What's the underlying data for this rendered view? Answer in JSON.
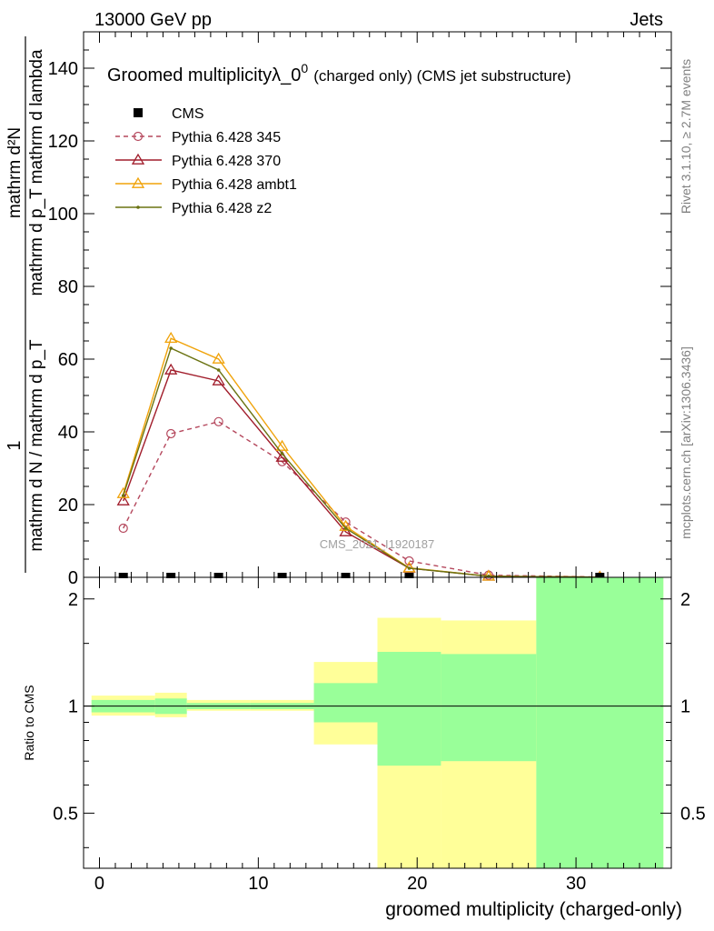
{
  "header": {
    "left": "13000 GeV pp",
    "right": "Jets"
  },
  "side_labels": {
    "rivet": "Rivet 3.1.10, ≥ 2.7M events",
    "mcplots": "mcplots.cern.ch [arXiv:1306.3436]"
  },
  "watermark": "CMS_2021_I1920187",
  "chart_data": [
    {
      "type": "line",
      "title_main": "Groomed multiplicityλ_0",
      "title_sup": "0",
      "title_rest": "(charged only) (CMS jet substructure)",
      "ylabel_numerator": "mathrm d²N",
      "ylabel_numerator_2": "mathrm d p_T mathrm d lambda",
      "ylabel_one": "1",
      "ylabel_denominator": "mathrm d N / mathrm d p_T",
      "xlabel": "groomed multiplicity (charged-only)",
      "xlim": [
        -1,
        36
      ],
      "ylim": [
        0,
        150
      ],
      "yticks": [
        0,
        20,
        40,
        60,
        80,
        100,
        120,
        140
      ],
      "yticklabels": [
        "0",
        "20",
        "40",
        "60",
        "80",
        "100",
        "120",
        "140"
      ],
      "legend_placement": "top-left",
      "legend": [
        {
          "name": "CMS",
          "color": "#000000",
          "marker": "square",
          "dash": false
        },
        {
          "name": "Pythia 6.428 345",
          "color": "#b5485d",
          "marker": "circle",
          "dash": true
        },
        {
          "name": "Pythia 6.428 370",
          "color": "#a11d2b",
          "marker": "triangle",
          "dash": false
        },
        {
          "name": "Pythia 6.428 ambt1",
          "color": "#f0a30a",
          "marker": "triangle",
          "dash": false
        },
        {
          "name": "Pythia 6.428 z2",
          "color": "#6b7312",
          "marker": "dot",
          "dash": false
        }
      ],
      "cms": {
        "x": [
          1.5,
          4.5,
          7.5,
          11.5,
          15.5,
          19.5,
          31.5
        ],
        "y": [
          0,
          0,
          0,
          0,
          0,
          0,
          0
        ]
      },
      "series": [
        {
          "name": "Pythia 6.428 345",
          "x": [
            1.5,
            4.5,
            7.5,
            11.5,
            15.5,
            19.5,
            24.5,
            31.5
          ],
          "y": [
            13.5,
            39.5,
            42.8,
            31.8,
            15.2,
            4.5,
            0.6,
            0.1
          ]
        },
        {
          "name": "Pythia 6.428 370",
          "x": [
            1.5,
            4.5,
            7.5,
            11.5,
            15.5,
            19.5,
            24.5,
            31.5
          ],
          "y": [
            21,
            57,
            54,
            33,
            12.5,
            2.5,
            0.3,
            0.05
          ]
        },
        {
          "name": "Pythia 6.428 ambt1",
          "x": [
            1.5,
            4.5,
            7.5,
            11.5,
            15.5,
            19.5,
            24.5,
            31.5
          ],
          "y": [
            23,
            65.7,
            60,
            36,
            14,
            2.6,
            0.3,
            0.05
          ]
        },
        {
          "name": "Pythia 6.428 z2",
          "x": [
            1.5,
            4.5,
            7.5,
            11.5,
            15.5,
            19.5,
            24.5,
            31.5
          ],
          "y": [
            22.5,
            63,
            57,
            34,
            13.5,
            2.5,
            0.3,
            0.05
          ]
        }
      ]
    },
    {
      "type": "area",
      "ylabel": "Ratio to CMS",
      "ylim": [
        0.35,
        2.3
      ],
      "yticks": [
        0.5,
        1,
        2
      ],
      "yticklabels": [
        "0.5",
        "1",
        "2"
      ],
      "xlim": [
        -1,
        36
      ],
      "xticks": [
        0,
        10,
        20,
        30
      ],
      "xticklabels": [
        "0",
        "10",
        "20",
        "30"
      ],
      "colors": {
        "band_outer": "#ffff99",
        "band_inner": "#99ff99",
        "ref_line": "#000000"
      },
      "bins": [
        {
          "x0": -0.5,
          "x1": 3.5,
          "outer": [
            0.94,
            1.07
          ],
          "inner": [
            0.96,
            1.04
          ]
        },
        {
          "x0": 3.5,
          "x1": 5.5,
          "outer": [
            0.93,
            1.09
          ],
          "inner": [
            0.95,
            1.05
          ]
        },
        {
          "x0": 5.5,
          "x1": 9.5,
          "outer": [
            0.97,
            1.04
          ],
          "inner": [
            0.98,
            1.02
          ]
        },
        {
          "x0": 9.5,
          "x1": 13.5,
          "outer": [
            0.97,
            1.04
          ],
          "inner": [
            0.98,
            1.02
          ]
        },
        {
          "x0": 13.5,
          "x1": 17.5,
          "outer": [
            0.78,
            1.33
          ],
          "inner": [
            0.9,
            1.16
          ]
        },
        {
          "x0": 17.5,
          "x1": 21.5,
          "outer": [
            0.35,
            1.77
          ],
          "inner": [
            0.68,
            1.42
          ]
        },
        {
          "x0": 21.5,
          "x1": 27.5,
          "outer": [
            0.35,
            1.74
          ],
          "inner": [
            0.7,
            1.4
          ]
        },
        {
          "x0": 27.5,
          "x1": 35.5,
          "outer": [
            0.35,
            2.3
          ],
          "inner": [
            0.35,
            2.3
          ]
        }
      ]
    }
  ]
}
